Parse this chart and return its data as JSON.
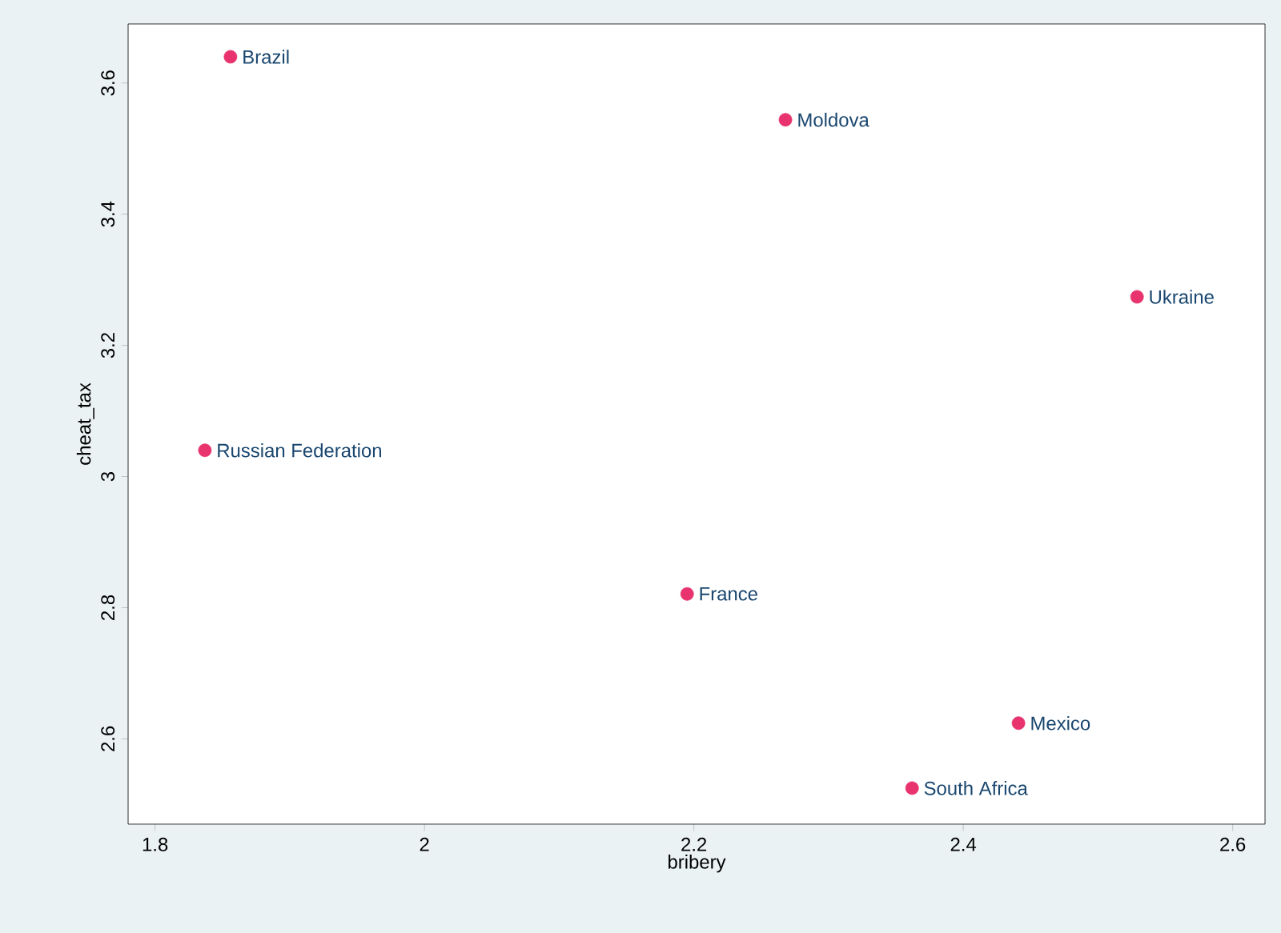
{
  "chart_data": {
    "type": "scatter",
    "xlabel": "bribery",
    "ylabel": "cheat_tax",
    "x": [
      1.856,
      2.268,
      2.529,
      1.837,
      2.195,
      2.441,
      2.362
    ],
    "series": [
      {
        "color": "#e8336e",
        "values": [
          3.64,
          3.544,
          3.274,
          3.04,
          2.821,
          2.624,
          2.525
        ]
      }
    ],
    "marker": "circle",
    "grid": false,
    "xlim": [
      1.78,
      2.624
    ],
    "ylim": [
      2.47,
      3.69
    ],
    "xticks": [
      1.8,
      2,
      2.2,
      2.4,
      2.6
    ],
    "yticks": [
      2.6,
      2.8,
      3,
      3.2,
      3.4,
      3.6
    ],
    "annotations": [
      {
        "text": "Brazil",
        "x": 1.856,
        "y": 3.64
      },
      {
        "text": "Moldova",
        "x": 2.268,
        "y": 3.544
      },
      {
        "text": "Ukraine",
        "x": 2.529,
        "y": 3.274
      },
      {
        "text": "Russian Federation",
        "x": 1.837,
        "y": 3.04
      },
      {
        "text": "France",
        "x": 2.195,
        "y": 2.821
      },
      {
        "text": "Mexico",
        "x": 2.441,
        "y": 2.624
      },
      {
        "text": "South Africa",
        "x": 2.362,
        "y": 2.525
      }
    ]
  }
}
